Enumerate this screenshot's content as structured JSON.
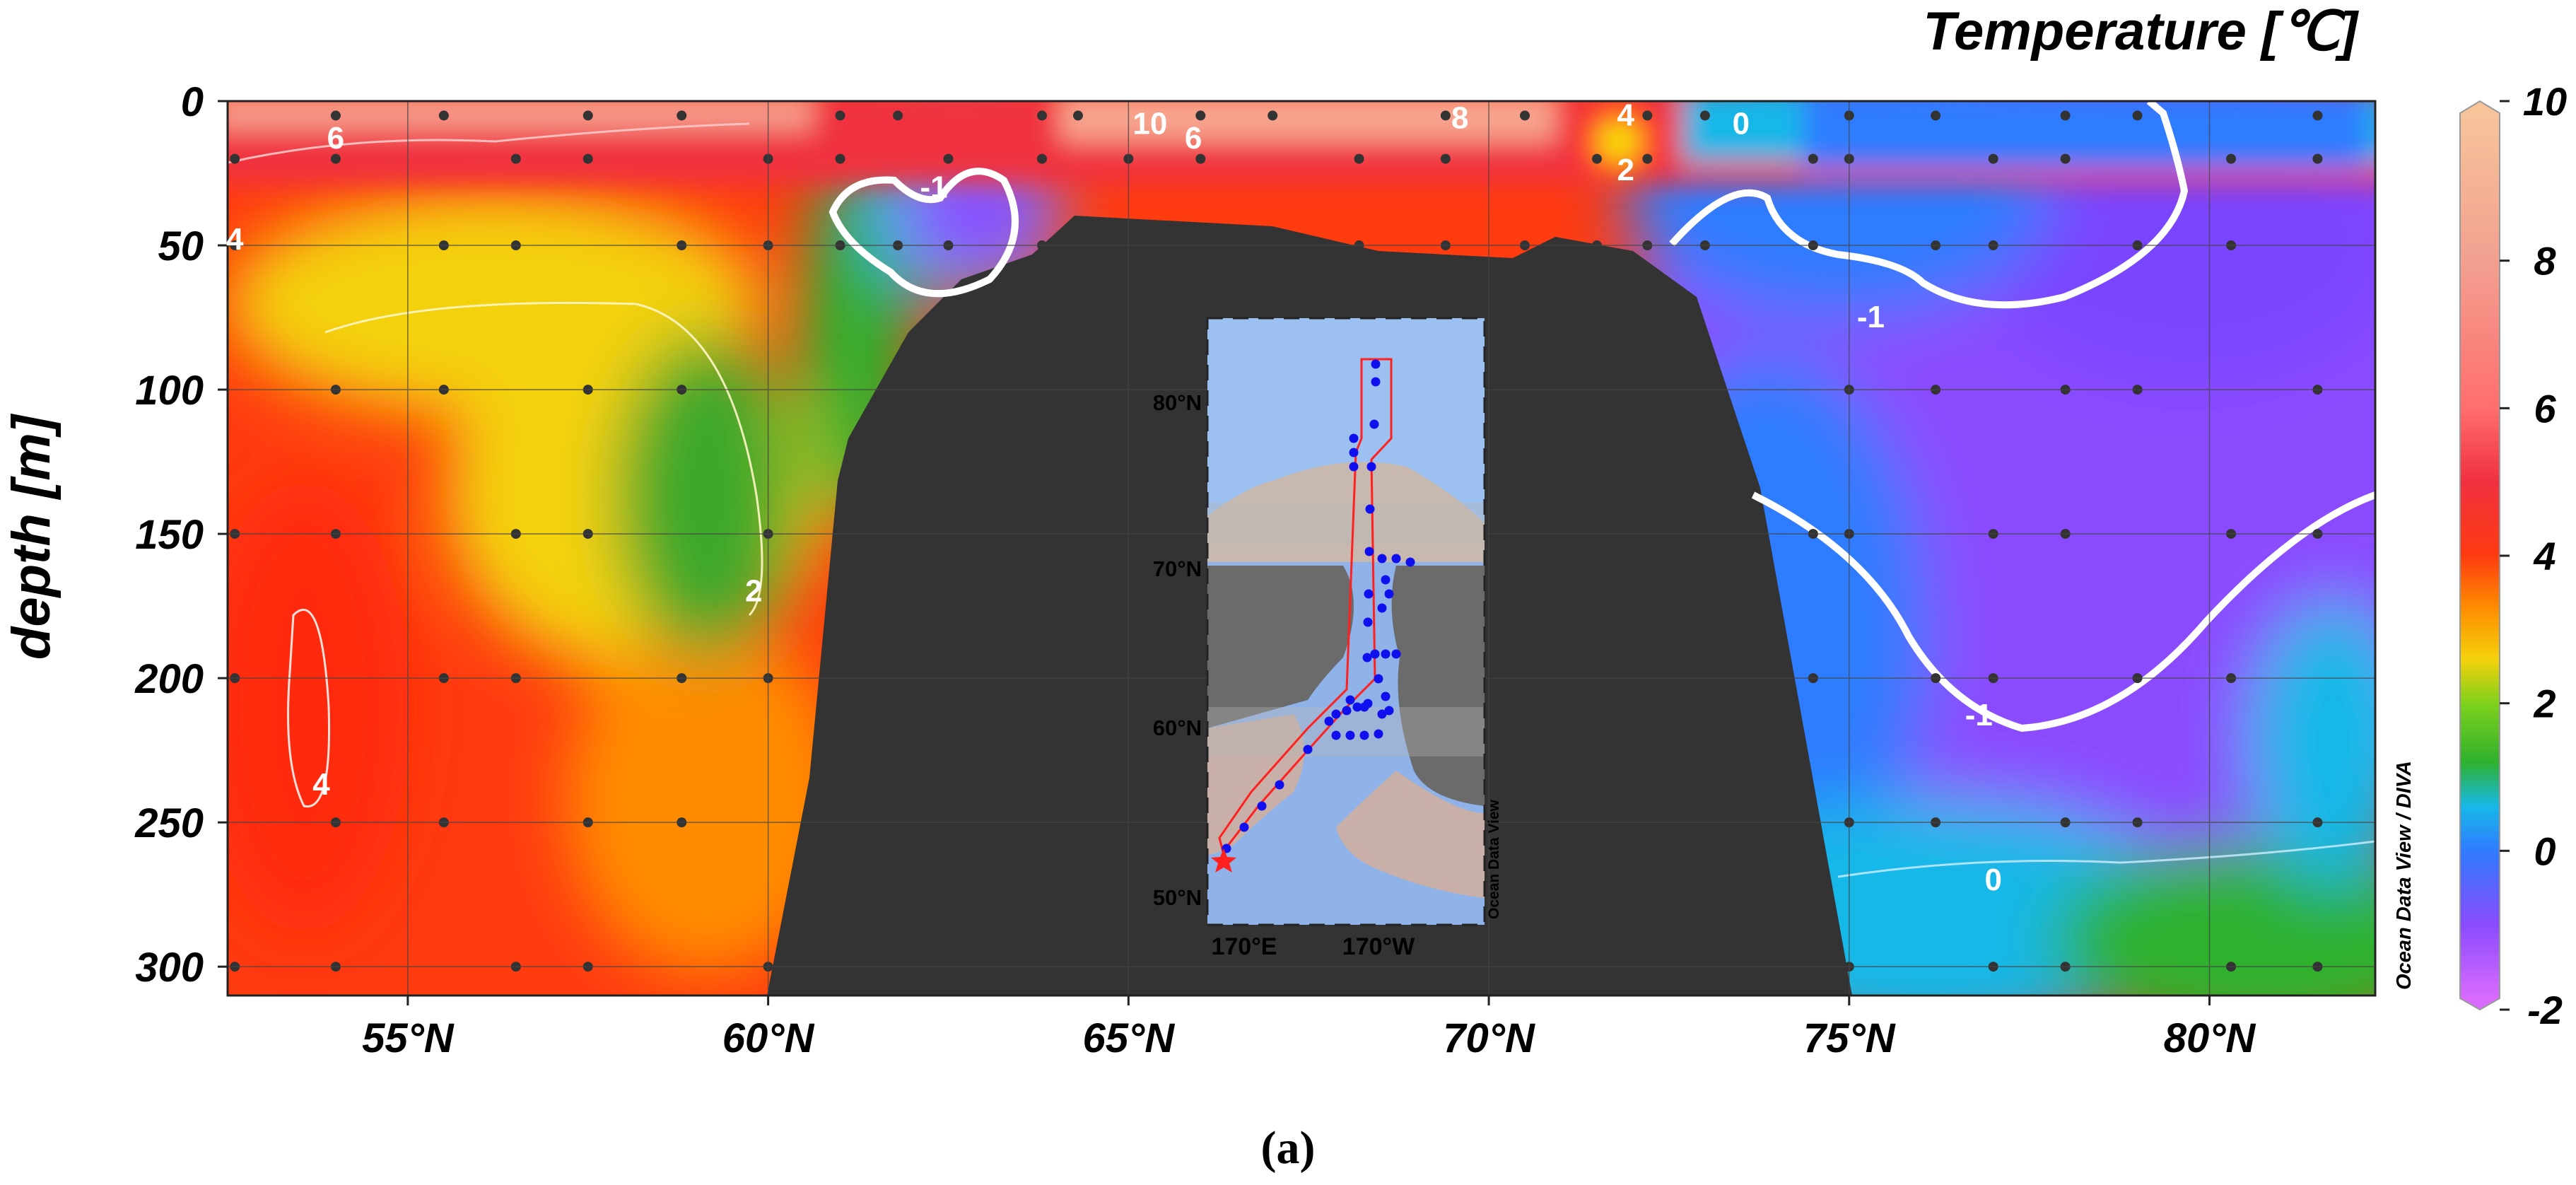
{
  "chart_data": {
    "type": "heatmap",
    "title": "Temperature [℃]",
    "ylabel": "depth [m]",
    "xlabel": "",
    "x_ticks": [
      "55°N",
      "60°N",
      "65°N",
      "70°N",
      "75°N",
      "80°N"
    ],
    "x_tick_values": [
      55,
      60,
      65,
      70,
      75,
      80
    ],
    "y_ticks": [
      "0",
      "50",
      "100",
      "150",
      "200",
      "250",
      "300"
    ],
    "y_tick_values": [
      0,
      50,
      100,
      150,
      200,
      250,
      300
    ],
    "xlim": [
      52.5,
      82.3
    ],
    "ylim": [
      310,
      0
    ],
    "grid": true,
    "colorbar": {
      "ticks": [
        "10",
        "8",
        "6",
        "4",
        "2",
        "0",
        "-2"
      ],
      "tick_values": [
        10,
        8,
        6,
        4,
        2,
        0,
        -2
      ],
      "range": [
        -2,
        10
      ],
      "side_label": "Ocean Data View / DIVA",
      "stops": [
        {
          "value": -2,
          "color": "#d96bff"
        },
        {
          "value": -1,
          "color": "#8a4bff"
        },
        {
          "value": 0,
          "color": "#2f7bff"
        },
        {
          "value": 0.6,
          "color": "#18b8e8"
        },
        {
          "value": 1.2,
          "color": "#2fb12e"
        },
        {
          "value": 2,
          "color": "#7fd11c"
        },
        {
          "value": 2.6,
          "color": "#f4d10a"
        },
        {
          "value": 3.3,
          "color": "#ff8c00"
        },
        {
          "value": 4,
          "color": "#ff3b10"
        },
        {
          "value": 5,
          "color": "#f03040"
        },
        {
          "value": 6,
          "color": "#ff6e6e"
        },
        {
          "value": 8,
          "color": "#f2a090"
        },
        {
          "value": 10,
          "color": "#f7c49a"
        }
      ]
    },
    "contour_labels": [
      {
        "text": "6",
        "lat": 54.0,
        "depth": 13
      },
      {
        "text": "4",
        "lat": 52.6,
        "depth": 48
      },
      {
        "text": "4",
        "lat": 53.8,
        "depth": 237
      },
      {
        "text": "2",
        "lat": 59.8,
        "depth": 170
      },
      {
        "text": "-1",
        "lat": 62.3,
        "depth": 30
      },
      {
        "text": "10",
        "lat": 65.3,
        "depth": 8
      },
      {
        "text": "6",
        "lat": 65.9,
        "depth": 13
      },
      {
        "text": "8",
        "lat": 69.6,
        "depth": 6
      },
      {
        "text": "4",
        "lat": 71.9,
        "depth": 5
      },
      {
        "text": "2",
        "lat": 71.9,
        "depth": 24
      },
      {
        "text": "0",
        "lat": 73.5,
        "depth": 8
      },
      {
        "text": "-1",
        "lat": 75.3,
        "depth": 75
      },
      {
        "text": "-1",
        "lat": 76.8,
        "depth": 213
      },
      {
        "text": "0",
        "lat": 77.0,
        "depth": 270
      }
    ],
    "inset_map": {
      "lat_ticks": [
        "80°N",
        "70°N",
        "60°N",
        "50°N"
      ],
      "lon_ticks": [
        "170°E",
        "170°W"
      ],
      "label": "Ocean Data View"
    }
  },
  "caption": "(a)"
}
